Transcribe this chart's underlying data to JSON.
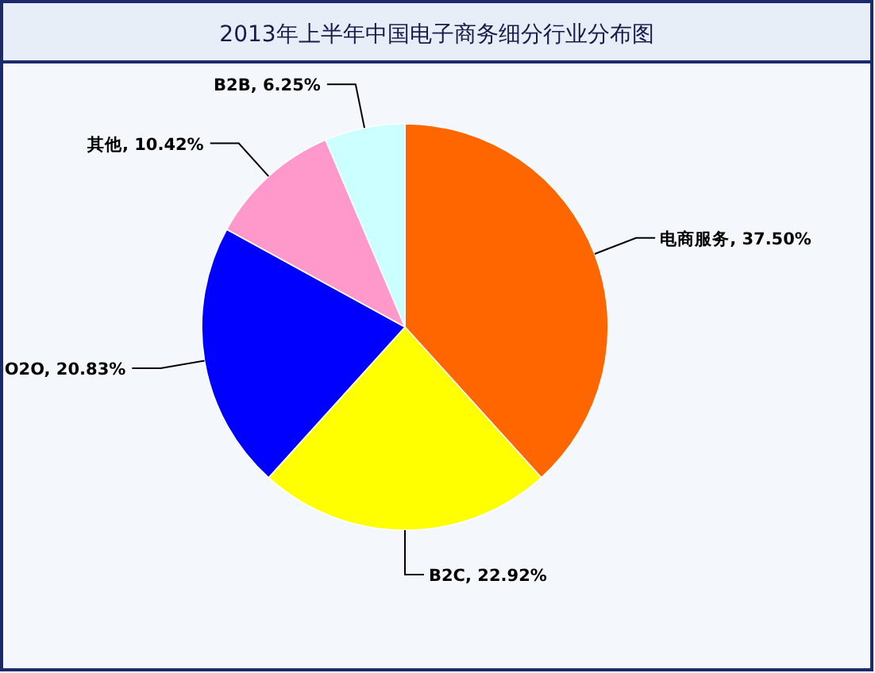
{
  "chart_data": {
    "type": "pie",
    "title": "2013年上半年中国电子商务细分行业分布图",
    "categories": [
      "电商服务",
      "B2C",
      "O2O",
      "其他",
      "B2B"
    ],
    "values": [
      37.5,
      22.92,
      20.83,
      10.42,
      6.25
    ],
    "value_labels": [
      "37.50%",
      "22.92%",
      "20.83%",
      "10.42%",
      "6.25%"
    ],
    "colors": [
      "#ff6600",
      "#ffff00",
      "#0000ff",
      "#ff99cc",
      "#ccffff"
    ]
  }
}
